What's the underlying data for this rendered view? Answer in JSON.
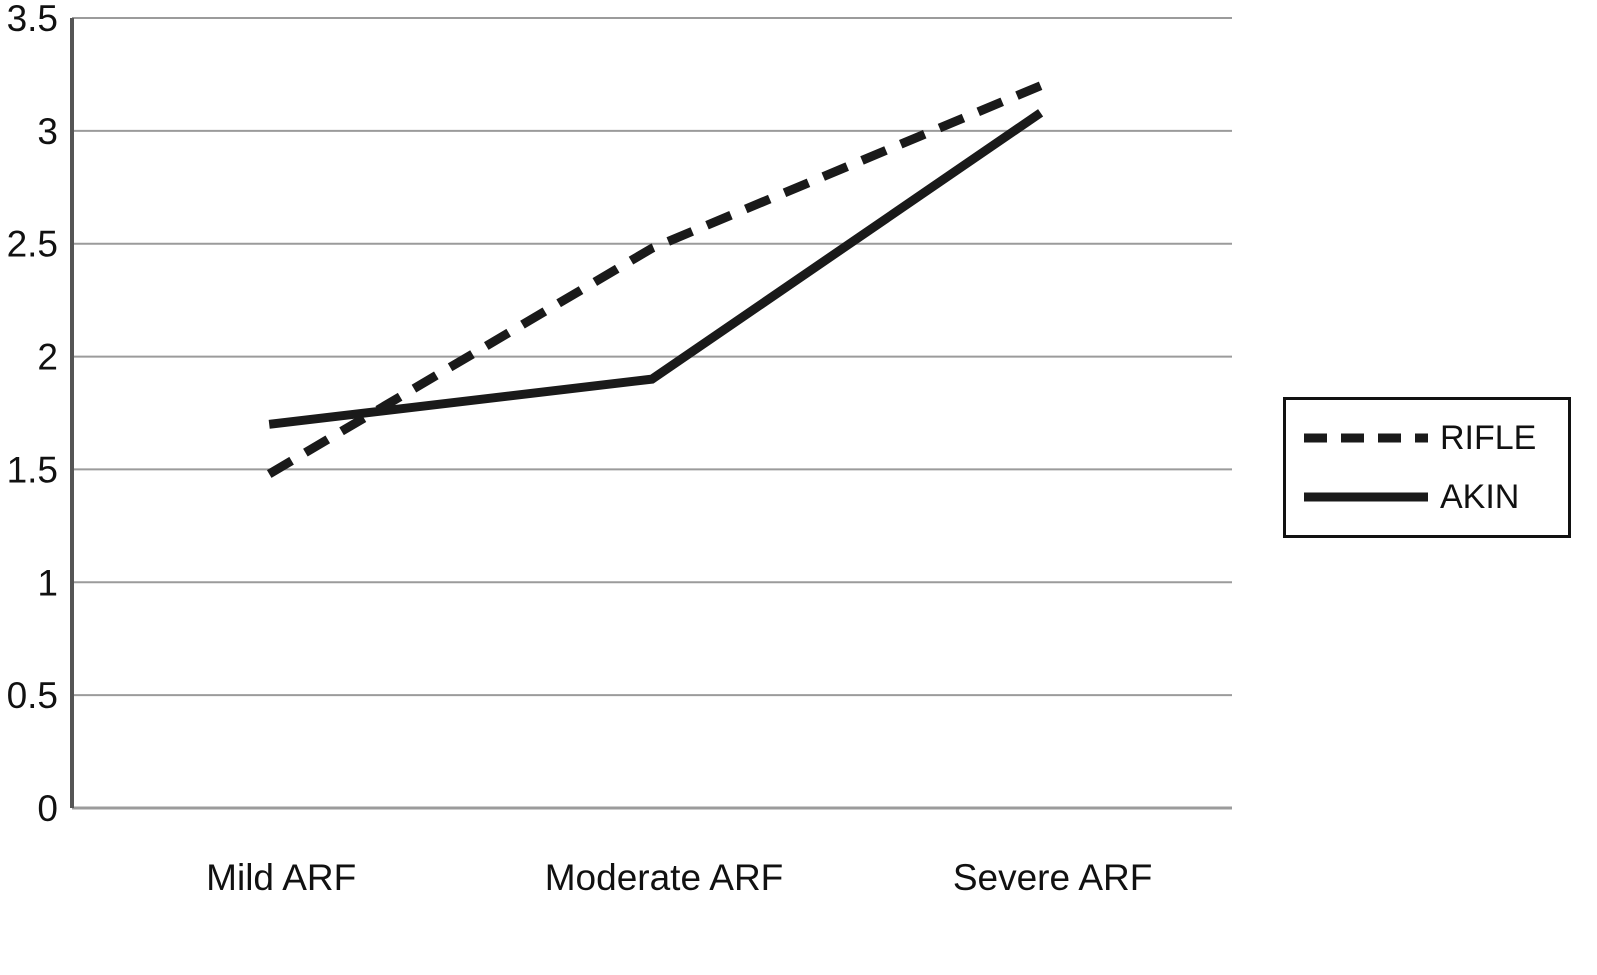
{
  "chart_data": {
    "type": "line",
    "title": "",
    "xlabel": "",
    "ylabel": "",
    "categories": [
      "Mild ARF",
      "Moderate ARF",
      "Severe ARF"
    ],
    "series": [
      {
        "name": "RIFLE",
        "style": "dashed",
        "values": [
          1.48,
          2.48,
          3.2
        ]
      },
      {
        "name": "AKIN",
        "style": "solid",
        "values": [
          1.7,
          1.9,
          3.08
        ]
      }
    ],
    "ylim": [
      0,
      3.5
    ],
    "yticks": [
      0,
      0.5,
      1,
      1.5,
      2,
      2.5,
      3,
      3.5
    ],
    "grid": true,
    "legend_position": "right",
    "colors": {
      "line": "#1a1a1a",
      "grid": "#9b9b9b",
      "axis": "#555555",
      "text": "#111111",
      "background": "#ffffff"
    }
  }
}
